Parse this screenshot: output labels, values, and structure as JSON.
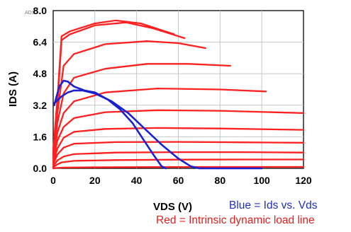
{
  "chart_data": {
    "type": "line",
    "corner_tag": "ADS",
    "xlabel": "VDS (V)",
    "ylabel": "IDS (A)",
    "xlim": [
      0,
      120
    ],
    "ylim": [
      0,
      8.0
    ],
    "x_ticks": [
      "0",
      "20",
      "40",
      "60",
      "80",
      "100",
      "120"
    ],
    "y_ticks": [
      "0.0",
      "1.6",
      "3.2",
      "4.8",
      "6.4",
      "8.0"
    ],
    "grid": true,
    "colors": {
      "load_lines": "#ff2020",
      "ids_vds": "#1a22d0",
      "grid": "#c8c8c8"
    },
    "notes": {
      "blue": "Blue = Ids vs. Vds",
      "red": "Red = Intrinsic dynamic load line"
    },
    "series": [
      {
        "group": "red",
        "values": [
          [
            0,
            0
          ],
          [
            2,
            0.02
          ],
          [
            5,
            0.04
          ],
          [
            15,
            0.05
          ],
          [
            40,
            0.06
          ],
          [
            80,
            0.07
          ],
          [
            120,
            0.07
          ]
        ]
      },
      {
        "group": "red",
        "values": [
          [
            0,
            0.05
          ],
          [
            2,
            0.2
          ],
          [
            4,
            0.3
          ],
          [
            10,
            0.38
          ],
          [
            30,
            0.42
          ],
          [
            60,
            0.44
          ],
          [
            90,
            0.45
          ],
          [
            120,
            0.45
          ]
        ]
      },
      {
        "group": "red",
        "values": [
          [
            0,
            0.1
          ],
          [
            2,
            0.4
          ],
          [
            5,
            0.6
          ],
          [
            10,
            0.72
          ],
          [
            30,
            0.8
          ],
          [
            60,
            0.82
          ],
          [
            90,
            0.82
          ],
          [
            120,
            0.8
          ]
        ]
      },
      {
        "group": "red",
        "values": [
          [
            0,
            0.2
          ],
          [
            2,
            0.7
          ],
          [
            5,
            1.05
          ],
          [
            10,
            1.25
          ],
          [
            30,
            1.33
          ],
          [
            60,
            1.34
          ],
          [
            90,
            1.32
          ],
          [
            120,
            1.3
          ]
        ]
      },
      {
        "group": "red",
        "values": [
          [
            0,
            0.3
          ],
          [
            2,
            1.0
          ],
          [
            5,
            1.55
          ],
          [
            10,
            1.85
          ],
          [
            25,
            2.0
          ],
          [
            50,
            2.05
          ],
          [
            80,
            2.02
          ],
          [
            120,
            1.95
          ]
        ]
      },
      {
        "group": "red",
        "values": [
          [
            0,
            0.4
          ],
          [
            2,
            1.4
          ],
          [
            5,
            2.1
          ],
          [
            10,
            2.55
          ],
          [
            25,
            2.85
          ],
          [
            50,
            2.95
          ],
          [
            80,
            2.92
          ],
          [
            120,
            2.8
          ]
        ]
      },
      {
        "group": "red",
        "values": [
          [
            0,
            0.5
          ],
          [
            2,
            1.8
          ],
          [
            5,
            2.8
          ],
          [
            10,
            3.4
          ],
          [
            25,
            3.85
          ],
          [
            50,
            4.05
          ],
          [
            80,
            4.0
          ],
          [
            102,
            3.9
          ]
        ]
      },
      {
        "group": "red",
        "values": [
          [
            0,
            0.6
          ],
          [
            2,
            2.3
          ],
          [
            5,
            3.8
          ],
          [
            10,
            4.6
          ],
          [
            25,
            5.05
          ],
          [
            45,
            5.3
          ],
          [
            65,
            5.3
          ],
          [
            85,
            5.2
          ]
        ]
      },
      {
        "group": "red",
        "values": [
          [
            0,
            0.7
          ],
          [
            2,
            2.8
          ],
          [
            5,
            5.2
          ],
          [
            10,
            5.8
          ],
          [
            25,
            6.3
          ],
          [
            45,
            6.45
          ],
          [
            60,
            6.35
          ],
          [
            73,
            6.1
          ]
        ]
      },
      {
        "group": "red",
        "values": [
          [
            0,
            0.8
          ],
          [
            2,
            3.2
          ],
          [
            4,
            6.5
          ],
          [
            8,
            6.8
          ],
          [
            20,
            7.25
          ],
          [
            35,
            7.4
          ],
          [
            48,
            7.1
          ],
          [
            63,
            6.6
          ]
        ]
      },
      {
        "group": "red",
        "values": [
          [
            0,
            0.9
          ],
          [
            2,
            3.5
          ],
          [
            4,
            6.7
          ],
          [
            8,
            6.95
          ],
          [
            20,
            7.35
          ],
          [
            30,
            7.5
          ],
          [
            42,
            7.35
          ],
          [
            58,
            6.8
          ]
        ]
      },
      {
        "group": "blue",
        "values": [
          [
            0.5,
            3.2
          ],
          [
            1.5,
            3.6
          ],
          [
            3,
            4.15
          ],
          [
            5,
            4.45
          ],
          [
            7,
            4.4
          ],
          [
            10,
            4.15
          ],
          [
            15,
            3.95
          ],
          [
            20,
            3.85
          ],
          [
            26,
            3.5
          ],
          [
            32,
            3.0
          ],
          [
            38,
            2.3
          ],
          [
            43,
            1.5
          ],
          [
            48,
            0.7
          ],
          [
            52,
            0.1
          ],
          [
            54,
            0.0
          ]
        ]
      },
      {
        "group": "blue",
        "values": [
          [
            0.5,
            3.3
          ],
          [
            2,
            3.45
          ],
          [
            4,
            3.65
          ],
          [
            7,
            3.85
          ],
          [
            10,
            3.95
          ],
          [
            14,
            3.95
          ],
          [
            20,
            3.8
          ],
          [
            28,
            3.4
          ],
          [
            36,
            2.8
          ],
          [
            44,
            2.0
          ],
          [
            52,
            1.2
          ],
          [
            60,
            0.5
          ],
          [
            66,
            0.1
          ],
          [
            70,
            0.0
          ],
          [
            100,
            0.0
          ]
        ]
      }
    ]
  }
}
